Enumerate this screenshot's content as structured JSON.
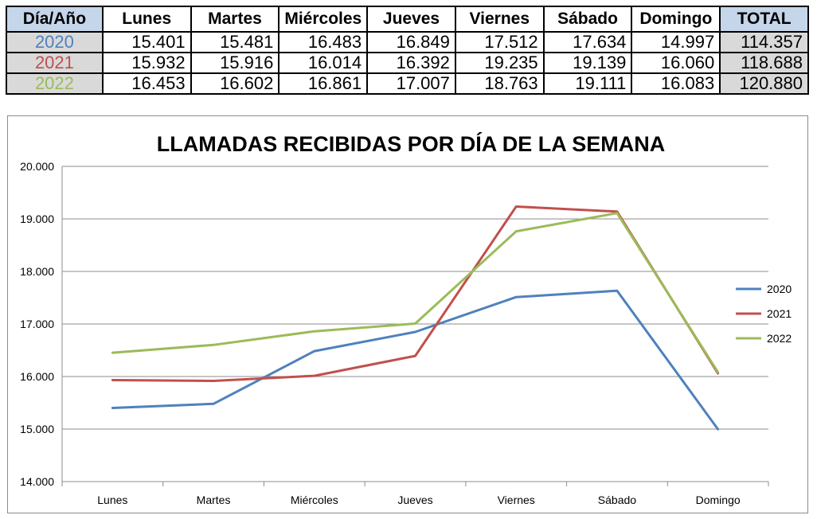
{
  "table": {
    "header": [
      "Día/Año",
      "Lunes",
      "Martes",
      "Miércoles",
      "Jueves",
      "Viernes",
      "Sábado",
      "Domingo",
      "TOTAL"
    ],
    "rows": [
      {
        "year": "2020",
        "color": "#4f81bd",
        "cells": [
          "15.401",
          "15.481",
          "16.483",
          "16.849",
          "17.512",
          "17.634",
          "14.997",
          "114.357"
        ]
      },
      {
        "year": "2021",
        "color": "#c0504d",
        "cells": [
          "15.932",
          "15.916",
          "16.014",
          "16.392",
          "19.235",
          "19.139",
          "16.060",
          "118.688"
        ]
      },
      {
        "year": "2022",
        "color": "#9bbb59",
        "cells": [
          "16.453",
          "16.602",
          "16.861",
          "17.007",
          "18.763",
          "19.111",
          "16.083",
          "120.880"
        ]
      }
    ]
  },
  "chart_data": {
    "type": "line",
    "title": "LLAMADAS RECIBIDAS POR DÍA DE LA SEMANA",
    "categories": [
      "Lunes",
      "Martes",
      "Miércoles",
      "Jueves",
      "Viernes",
      "Sábado",
      "Domingo"
    ],
    "series": [
      {
        "name": "2020",
        "color": "#4f81bd",
        "values": [
          15401,
          15481,
          16483,
          16849,
          17512,
          17634,
          14997
        ]
      },
      {
        "name": "2021",
        "color": "#c0504d",
        "values": [
          15932,
          15916,
          16014,
          16392,
          19235,
          19139,
          16060
        ]
      },
      {
        "name": "2022",
        "color": "#9bbb59",
        "values": [
          16453,
          16602,
          16861,
          17007,
          18763,
          19111,
          16083
        ]
      }
    ],
    "ylim": [
      14000,
      20000
    ],
    "yticks": [
      14000,
      15000,
      16000,
      17000,
      18000,
      19000,
      20000
    ],
    "ytick_labels": [
      "14.000",
      "15.000",
      "16.000",
      "17.000",
      "18.000",
      "19.000",
      "20.000"
    ],
    "grid": true,
    "legend_position": "right"
  }
}
